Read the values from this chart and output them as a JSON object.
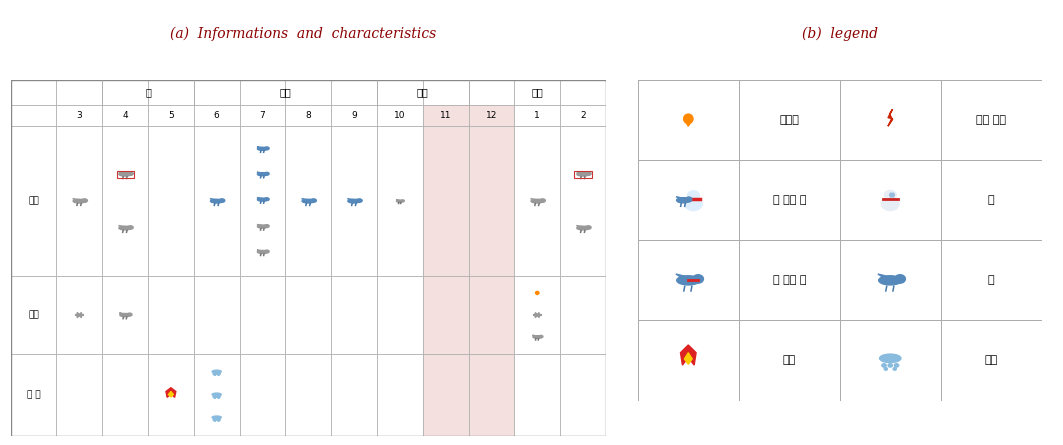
{
  "title_a": "(a)  Informations  and  characteristics",
  "title_b": "(b)  legend",
  "title_color": "#8B0000",
  "seasons": [
    "봄",
    "여름",
    "가을",
    "겨울"
  ],
  "months": [
    "3",
    "4",
    "5",
    "6",
    "7",
    "8",
    "9",
    "10",
    "11",
    "12",
    "1",
    "2"
  ],
  "row_labels": [
    "강수",
    "대설",
    "그 외"
  ],
  "highlight_color": "#f5e0e0",
  "grid_color": "#aaaaaa"
}
